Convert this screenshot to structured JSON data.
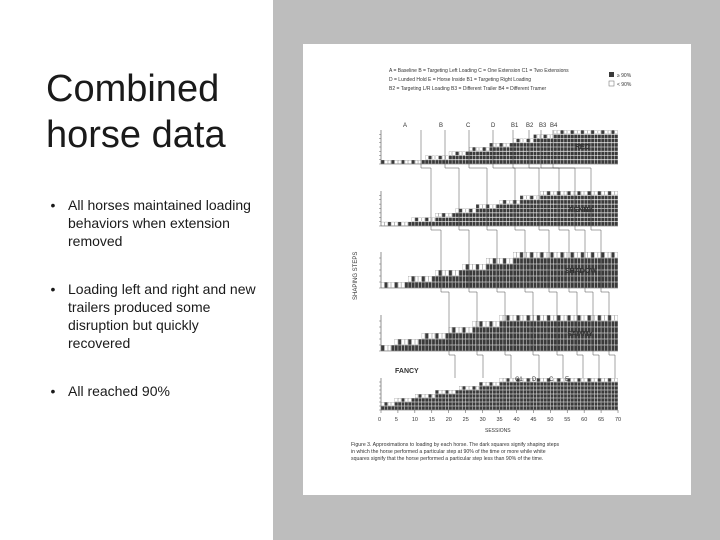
{
  "slide": {
    "title": "Combined horse data",
    "bullets": [
      "All horses maintained loading behaviors when extension removed",
      "Loading left and right and new trailers produced some disruption but quickly recovered",
      "All reached 90%"
    ],
    "bullet_glyph": "•"
  },
  "figure": {
    "legend_lines": [
      "A = Baseline   B = Targeting Left Loading   C = One Extension   C1 = Two Extensions",
      "D = Lunded Hold   E = Horse Inside   B1 = Targeting Right Loading",
      "B2 = Targeting L/R Loading   B3 = Different Trailer   B4 = Different Tramer"
    ],
    "key": [
      "≥ 90%",
      "< 90%"
    ],
    "phase_labels_top": [
      "A",
      "B",
      "C",
      "D",
      "B1",
      "B2",
      "B3",
      "B4"
    ],
    "phase_labels_bottom": [
      "C1",
      "D",
      "C",
      "E"
    ],
    "horses": [
      "RED",
      "PENNY",
      "SHADOW",
      "SAMMY",
      "FANCY"
    ],
    "y_axis_label": "SHAPING STEPS",
    "x_ticks": [
      "0",
      "5",
      "10",
      "15",
      "20",
      "25",
      "30",
      "35",
      "40",
      "45",
      "50",
      "55",
      "60",
      "65",
      "70"
    ],
    "x_axis_label": "SESSIONS",
    "caption": "Figure 3.   Approximations to loading by each horse. The dark squares signify shaping steps in which the horse performed a particular step at 90% of the time or more while white squares signify that the horse performed a particular step less than 90% of the time."
  },
  "colors": {
    "right_panel": "#bdbdbd",
    "dark_square": "#3a3a3a",
    "light_square": "#ffffff",
    "line": "#4a4a4a"
  }
}
